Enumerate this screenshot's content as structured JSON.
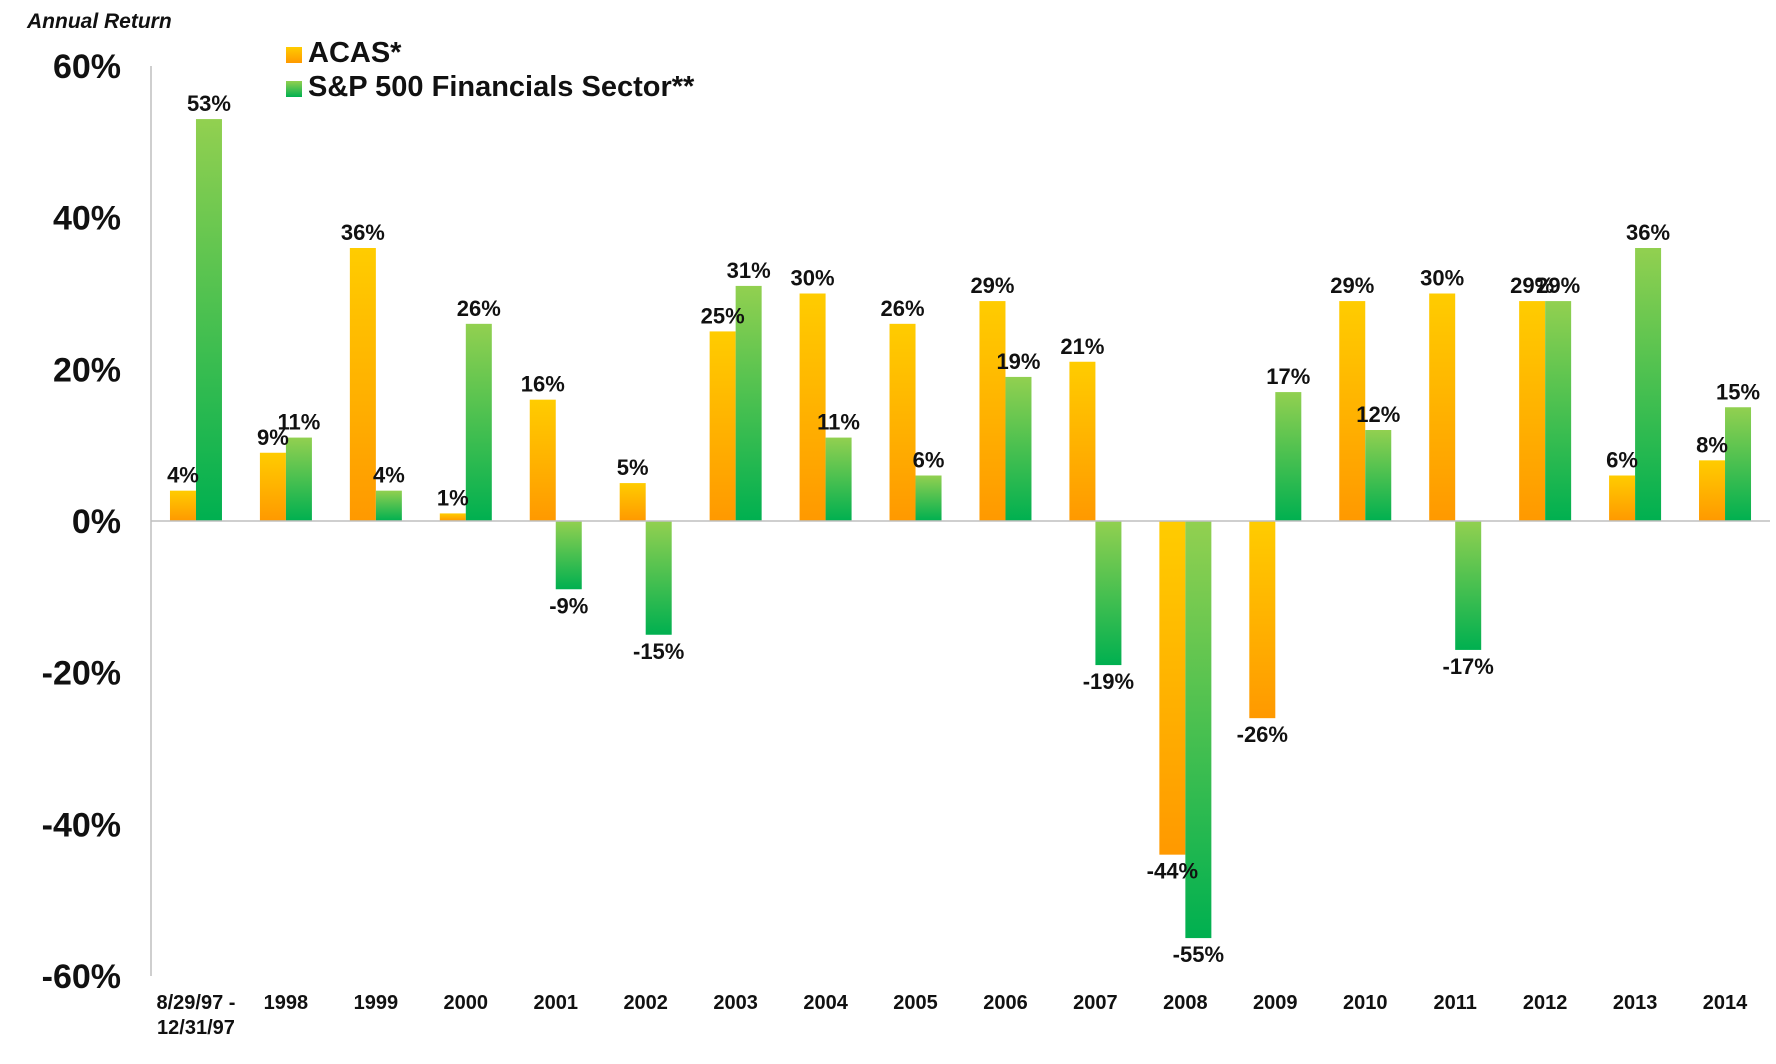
{
  "chart_data": {
    "type": "bar",
    "title": "",
    "ylabel": "Annual Return",
    "xlabel": "",
    "ylim": [
      -60,
      60
    ],
    "yticks": [
      60,
      40,
      20,
      0,
      -20,
      -40,
      -60
    ],
    "ytick_labels": [
      "60%",
      "40%",
      "20%",
      "0%",
      "-20%",
      "-40%",
      "-60%"
    ],
    "categories": [
      [
        "8/29/97 -",
        "12/31/97"
      ],
      [
        "1998"
      ],
      [
        "1999"
      ],
      [
        "2000"
      ],
      [
        "2001"
      ],
      [
        "2002"
      ],
      [
        "2003"
      ],
      [
        "2004"
      ],
      [
        "2005"
      ],
      [
        "2006"
      ],
      [
        "2007"
      ],
      [
        "2008"
      ],
      [
        "2009"
      ],
      [
        "2010"
      ],
      [
        "2011"
      ],
      [
        "2012"
      ],
      [
        "2013"
      ],
      [
        "2014"
      ]
    ],
    "series": [
      {
        "name": "ACAS*",
        "colors": {
          "top": "#ffcc00",
          "bottom": "#ff9900"
        },
        "values": [
          4,
          9,
          36,
          1,
          16,
          5,
          25,
          30,
          26,
          29,
          21,
          -44,
          -26,
          29,
          30,
          29,
          6,
          8
        ],
        "labels": [
          "4%",
          "9%",
          "36%",
          "1%",
          "16%",
          "5%",
          "25%",
          "30%",
          "26%",
          "29%",
          "21%",
          "-44%",
          "-26%",
          "29%",
          "30%",
          "29%",
          "6%",
          "8%"
        ]
      },
      {
        "name": "S&P 500 Financials Sector**",
        "colors": {
          "top": "#92d050",
          "bottom": "#00b050"
        },
        "values": [
          53,
          11,
          4,
          26,
          -9,
          -15,
          31,
          11,
          6,
          19,
          -19,
          -55,
          17,
          12,
          -17,
          29,
          36,
          15
        ],
        "labels": [
          "53%",
          "11%",
          "4%",
          "26%",
          "-9%",
          "-15%",
          "31%",
          "11%",
          "6%",
          "19%",
          "-19%",
          "-55%",
          "17%",
          "12%",
          "-17%",
          "29%",
          "36%",
          "15%"
        ]
      }
    ],
    "legend": "top-left"
  }
}
